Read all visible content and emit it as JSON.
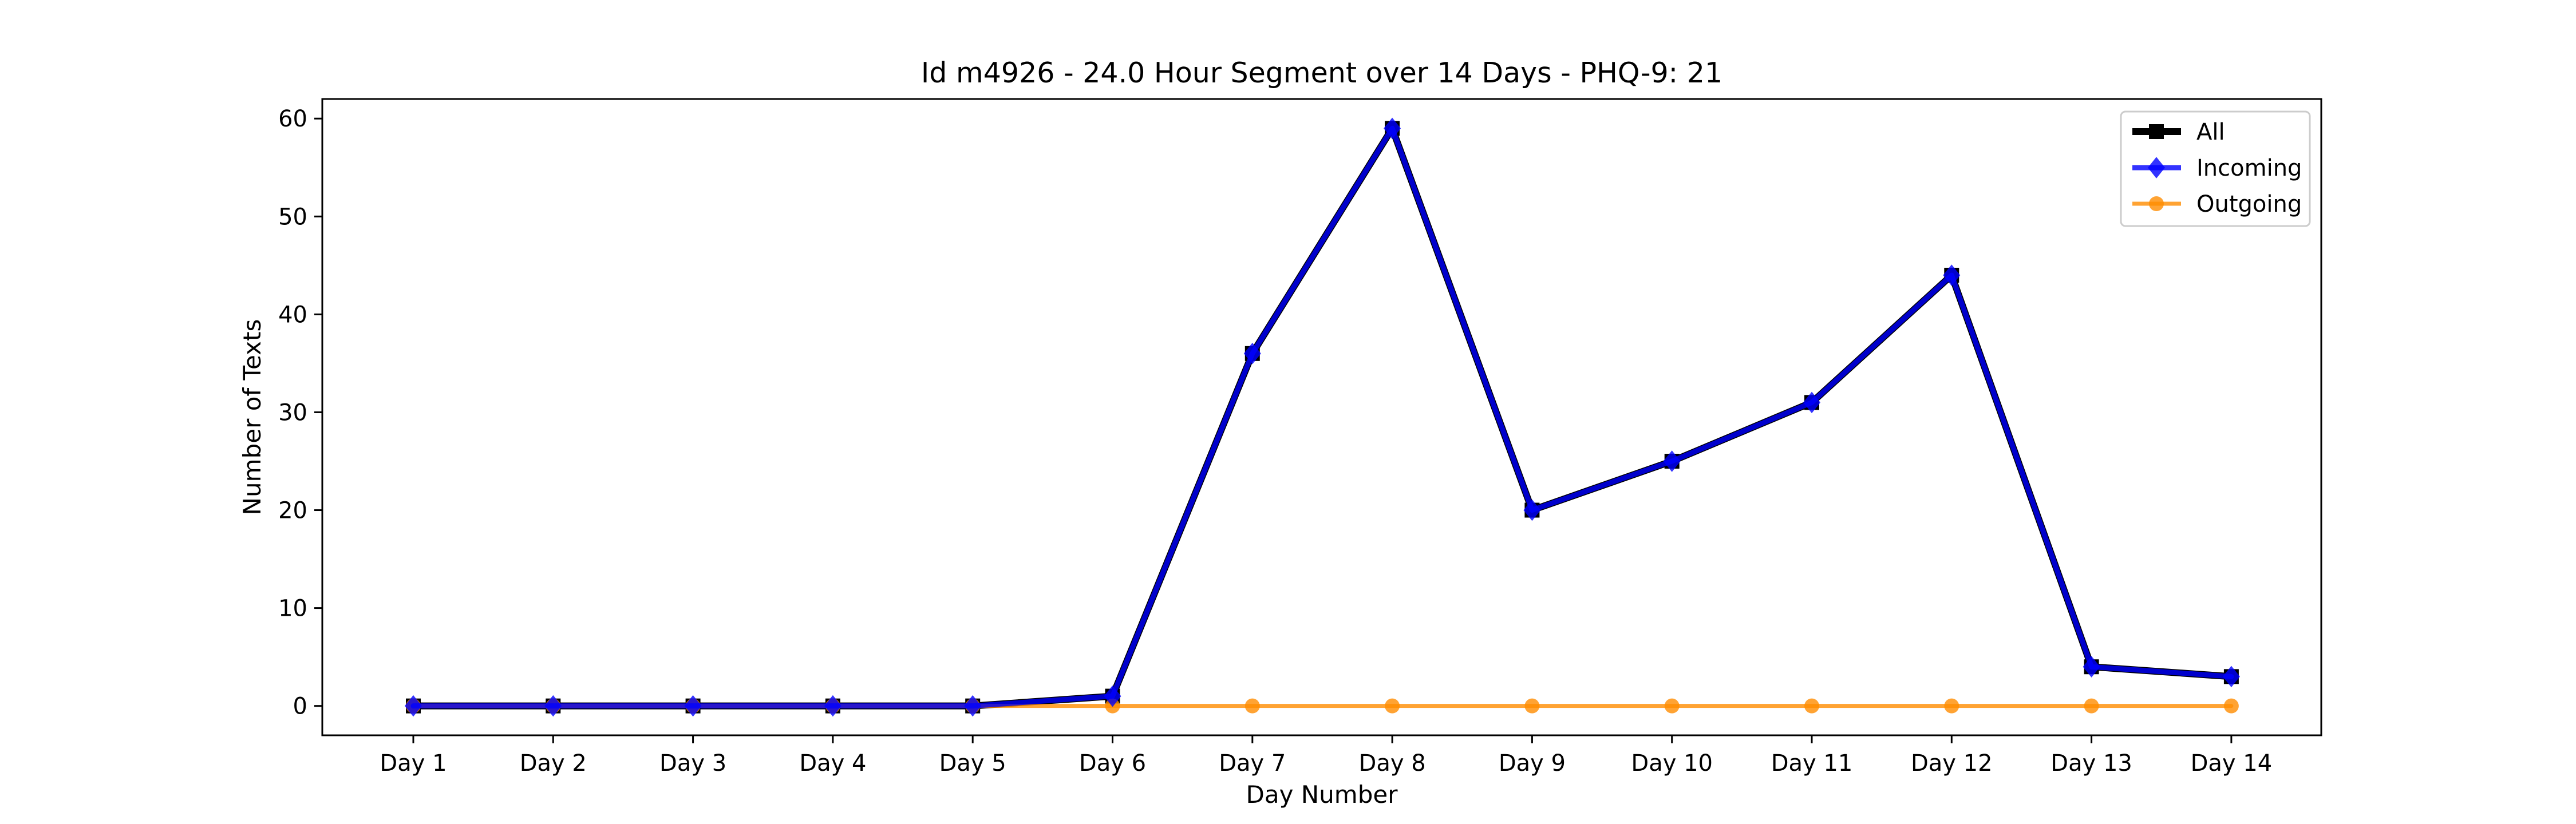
{
  "chart_data": {
    "type": "line",
    "title": "Id m4926 - 24.0 Hour Segment over 14 Days - PHQ-9: 21",
    "xlabel": "Day Number",
    "ylabel": "Number of Texts",
    "categories": [
      "Day 1",
      "Day 2",
      "Day 3",
      "Day 4",
      "Day 5",
      "Day 6",
      "Day 7",
      "Day 8",
      "Day 9",
      "Day 10",
      "Day 11",
      "Day 12",
      "Day 13",
      "Day 14"
    ],
    "ylim": [
      -3,
      62
    ],
    "yticks": [
      0,
      10,
      20,
      30,
      40,
      50,
      60
    ],
    "grid": false,
    "legend_position": "top-right",
    "series": [
      {
        "name": "All",
        "values": [
          0,
          0,
          0,
          0,
          0,
          1,
          36,
          59,
          20,
          25,
          31,
          44,
          4,
          3
        ],
        "color": "#000000",
        "marker": "square"
      },
      {
        "name": "Incoming",
        "values": [
          0,
          0,
          0,
          0,
          0,
          1,
          36,
          59,
          20,
          25,
          31,
          44,
          4,
          3
        ],
        "color": "#0000ff",
        "marker": "diamond"
      },
      {
        "name": "Outgoing",
        "values": [
          0,
          0,
          0,
          0,
          0,
          0,
          0,
          0,
          0,
          0,
          0,
          0,
          0,
          0
        ],
        "color": "#ff8c00",
        "marker": "circle"
      }
    ]
  }
}
